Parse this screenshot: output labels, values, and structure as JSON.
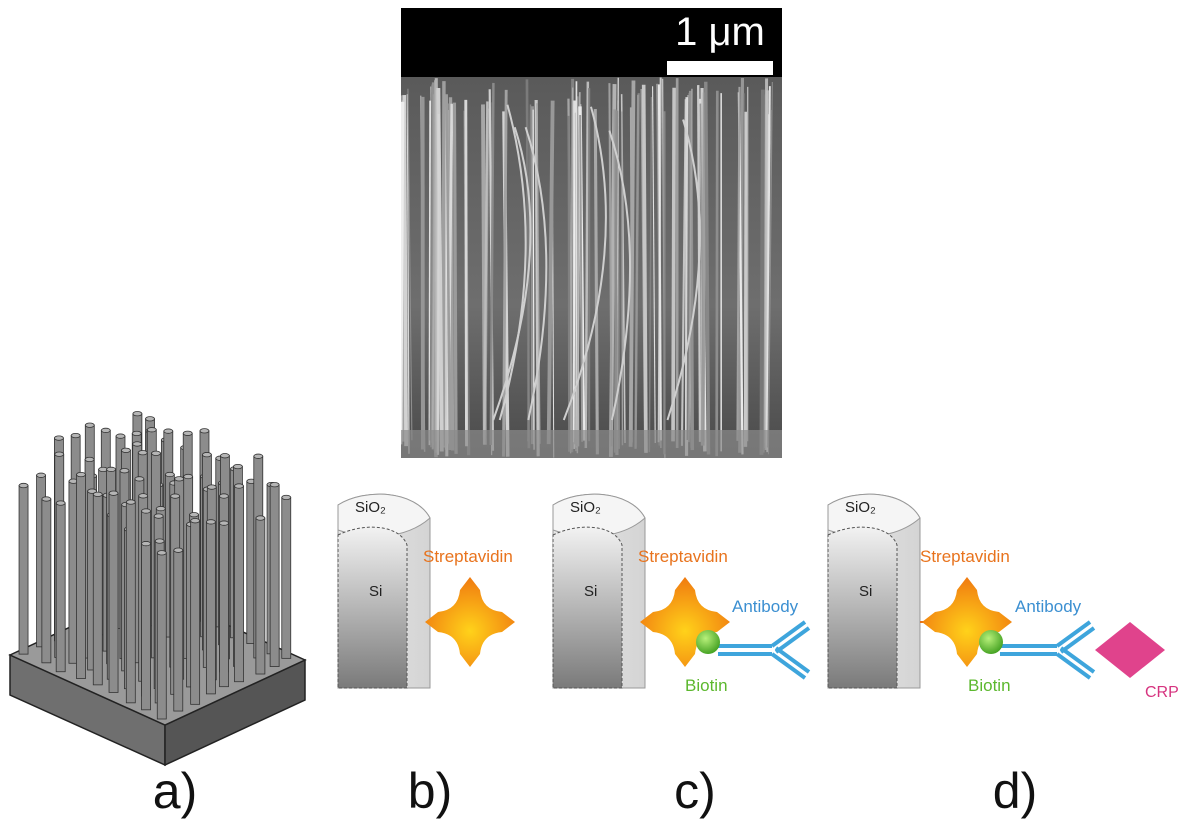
{
  "sem": {
    "scale_label": "1 μm"
  },
  "panels": [
    {
      "label": "a)"
    },
    {
      "label": "b)",
      "oxide": "SiO₂",
      "core": "Si",
      "linker": "Streptavidin"
    },
    {
      "label": "c)",
      "oxide": "SiO₂",
      "core": "Si",
      "linker": "Streptavidin",
      "antibody": "Antibody",
      "biotin": "Biotin"
    },
    {
      "label": "d)",
      "oxide": "SiO₂",
      "core": "Si",
      "linker": "Streptavidin",
      "antibody": "Antibody",
      "biotin": "Biotin",
      "target": "CRP"
    }
  ]
}
